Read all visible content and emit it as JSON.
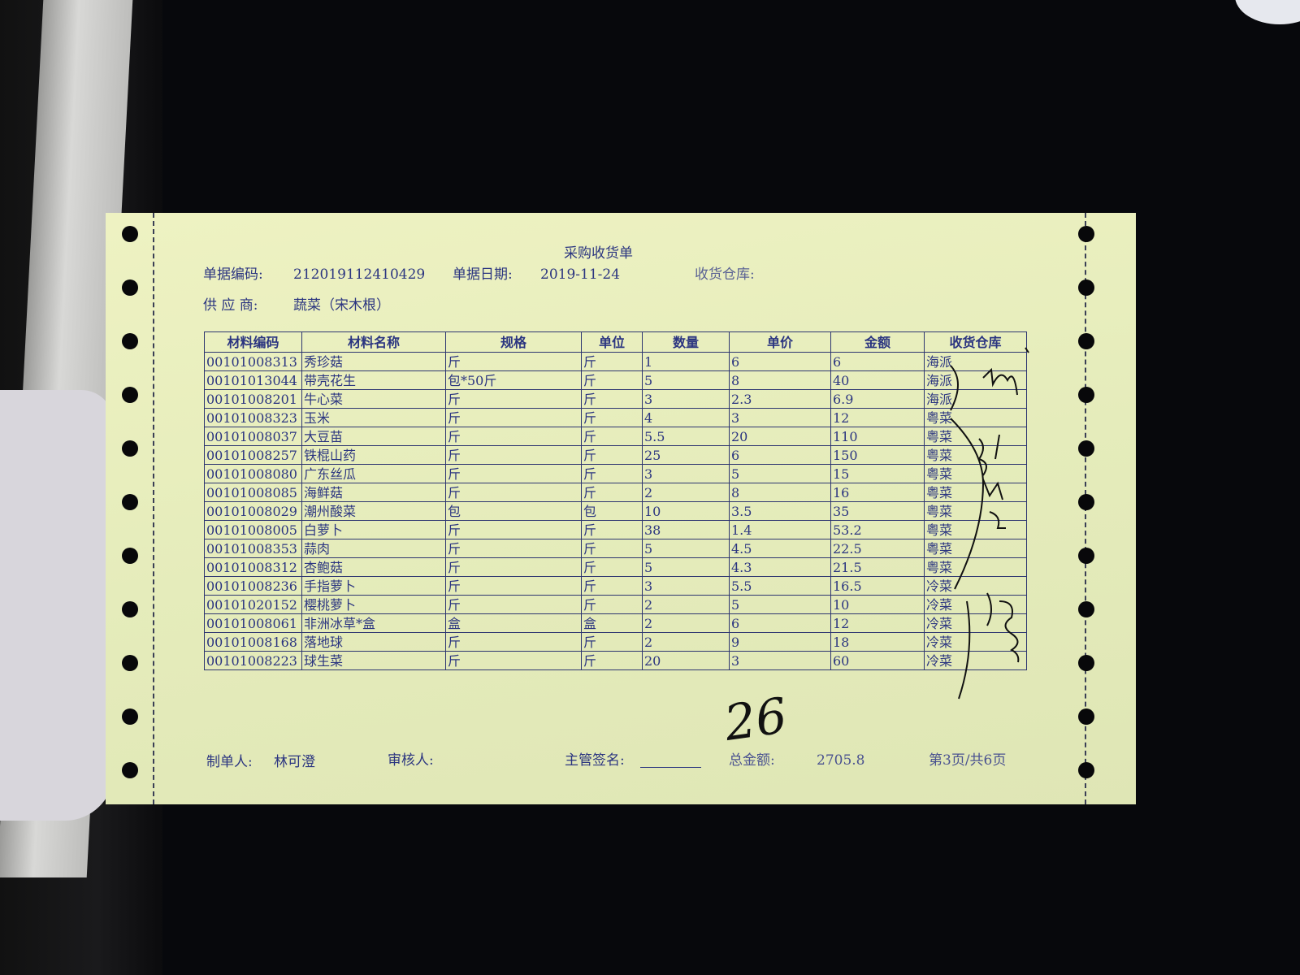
{
  "form": {
    "title": "采购收货单",
    "doc_no_label": "单据编码:",
    "doc_no": "212019112410429",
    "doc_date_label": "单据日期:",
    "doc_date": "2019-11-24",
    "warehouse_label": "收货仓库:",
    "supplier_label": "供 应 商:",
    "supplier": "蔬菜（宋木根）"
  },
  "table": {
    "headers": [
      "材料编码",
      "材料名称",
      "规格",
      "单位",
      "数量",
      "单价",
      "金额",
      "收货仓库"
    ],
    "rows": [
      [
        "00101008313",
        "秀珍菇",
        "斤",
        "斤",
        "1",
        "6",
        "6",
        "海派"
      ],
      [
        "00101013044",
        "带壳花生",
        "包*50斤",
        "斤",
        "5",
        "8",
        "40",
        "海派"
      ],
      [
        "00101008201",
        "牛心菜",
        "斤",
        "斤",
        "3",
        "2.3",
        "6.9",
        "海派"
      ],
      [
        "00101008323",
        "玉米",
        "斤",
        "斤",
        "4",
        "3",
        "12",
        "粤菜"
      ],
      [
        "00101008037",
        "大豆苗",
        "斤",
        "斤",
        "5.5",
        "20",
        "110",
        "粤菜"
      ],
      [
        "00101008257",
        "铁棍山药",
        "斤",
        "斤",
        "25",
        "6",
        "150",
        "粤菜"
      ],
      [
        "00101008080",
        "广东丝瓜",
        "斤",
        "斤",
        "3",
        "5",
        "15",
        "粤菜"
      ],
      [
        "00101008085",
        "海鲜菇",
        "斤",
        "斤",
        "2",
        "8",
        "16",
        "粤菜"
      ],
      [
        "00101008029",
        "潮州酸菜",
        "包",
        "包",
        "10",
        "3.5",
        "35",
        "粤菜"
      ],
      [
        "00101008005",
        "白萝卜",
        "斤",
        "斤",
        "38",
        "1.4",
        "53.2",
        "粤菜"
      ],
      [
        "00101008353",
        "蒜肉",
        "斤",
        "斤",
        "5",
        "4.5",
        "22.5",
        "粤菜"
      ],
      [
        "00101008312",
        "杏鲍菇",
        "斤",
        "斤",
        "5",
        "4.3",
        "21.5",
        "粤菜"
      ],
      [
        "00101008236",
        "手指萝卜",
        "斤",
        "斤",
        "3",
        "5.5",
        "16.5",
        "冷菜"
      ],
      [
        "00101020152",
        "樱桃萝卜",
        "斤",
        "斤",
        "2",
        "5",
        "10",
        "冷菜"
      ],
      [
        "00101008061",
        "非洲冰草*盒",
        "盒",
        "盒",
        "2",
        "6",
        "12",
        "冷菜"
      ],
      [
        "00101008168",
        "落地球",
        "斤",
        "斤",
        "2",
        "9",
        "18",
        "冷菜"
      ],
      [
        "00101008223",
        "球生菜",
        "斤",
        "斤",
        "20",
        "3",
        "60",
        "冷菜"
      ]
    ]
  },
  "footer": {
    "maker_label": "制单人:",
    "maker": "林可澄",
    "reviewer_label": "审核人:",
    "supervisor_label": "主管签名:",
    "total_label": "总金额:",
    "total": "2705.8",
    "page": "第3页/共6页"
  },
  "handwriting": {
    "count": "26"
  },
  "colors": {
    "paper": "#e8eebe",
    "ink": "#2b3580"
  }
}
